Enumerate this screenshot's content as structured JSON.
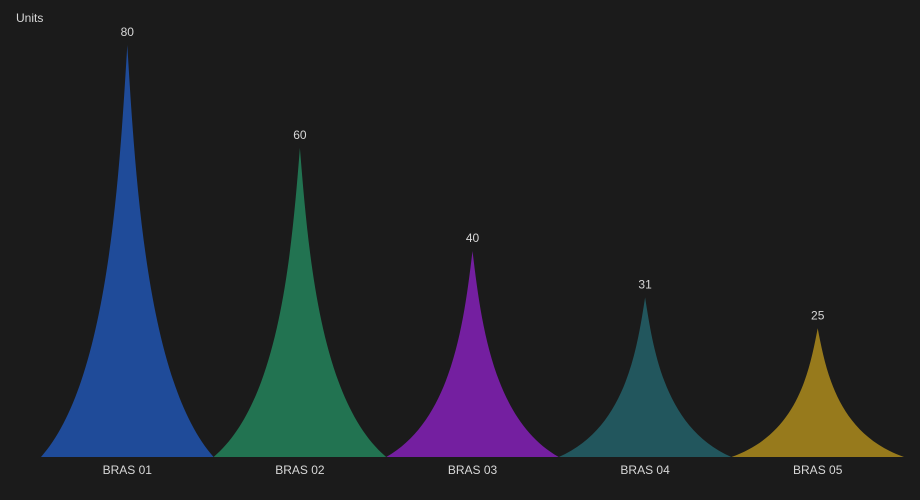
{
  "chart_data": {
    "type": "bar",
    "bar_shape": "spike",
    "ylabel": "Units",
    "ylim": [
      0,
      80
    ],
    "grid": false,
    "categories": [
      "BRAS 01",
      "BRAS 02",
      "BRAS 03",
      "BRAS 04",
      "BRAS 05"
    ],
    "values": [
      80,
      60,
      40,
      31,
      25
    ],
    "value_labels": [
      "80",
      "60",
      "40",
      "31",
      "25"
    ],
    "colors": [
      "#1f4b99",
      "#227351",
      "#741fa0",
      "#22565d",
      "#977a1c"
    ]
  },
  "theme": {
    "background": "#1b1b1b",
    "text": "#d8d8d8"
  }
}
